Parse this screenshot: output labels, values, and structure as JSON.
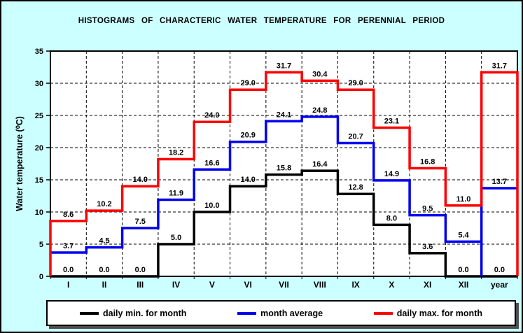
{
  "chart_data": {
    "type": "line",
    "subtype": "step-histogram",
    "title": "HISTOGRAMS OF CHARACTERIC WATER TEMPERATURE FOR PERENNIAL PERIOD",
    "xlabel": "",
    "ylabel": "Water temperature (⁰C)",
    "ylim": [
      0,
      35
    ],
    "yticks": [
      0,
      5,
      10,
      15,
      20,
      25,
      30,
      35
    ],
    "grid": true,
    "grid_style": "dashed",
    "legend_position": "bottom",
    "background_color": "#ccffff",
    "plot_background_color": "#ffffff",
    "categories": [
      "I",
      "II",
      "III",
      "IV",
      "V",
      "VI",
      "VII",
      "VIII",
      "IX",
      "X",
      "XI",
      "XII",
      "year"
    ],
    "series": [
      {
        "name": "daily min. for month",
        "color": "#000000",
        "values": [
          0.0,
          0.0,
          0.0,
          5.0,
          10.0,
          14.0,
          15.8,
          16.4,
          12.8,
          8.0,
          3.6,
          0.0,
          0.0
        ]
      },
      {
        "name": "month average",
        "color": "#0000ee",
        "values": [
          3.7,
          4.5,
          7.5,
          11.9,
          16.6,
          20.9,
          24.1,
          24.8,
          20.7,
          14.9,
          9.5,
          5.4,
          13.7
        ],
        "drop_to_zero_before_index": 12
      },
      {
        "name": "daily max. for month",
        "color": "#ff0000",
        "values": [
          8.6,
          10.2,
          14.0,
          18.2,
          24.0,
          29.0,
          31.7,
          30.4,
          29.0,
          23.1,
          16.8,
          11.0,
          31.7
        ],
        "start_at_zero": true,
        "end_at_zero": true
      }
    ]
  }
}
